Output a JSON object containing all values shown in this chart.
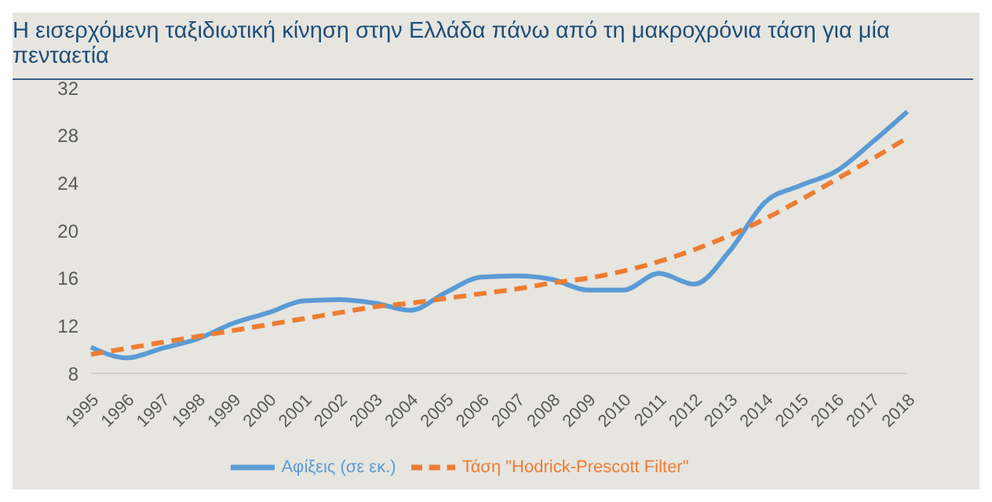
{
  "chart_data": {
    "type": "line",
    "title": "Η εισερχόμενη ταξιδιωτική κίνηση στην Ελλάδα πάνω από τη μακροχρόνια τάση για μία πενταετία",
    "categories": [
      "1995",
      "1996",
      "1997",
      "1998",
      "1999",
      "2000",
      "2001",
      "2002",
      "2003",
      "2004",
      "2005",
      "2006",
      "2007",
      "2008",
      "2009",
      "2010",
      "2011",
      "2012",
      "2013",
      "2014",
      "2015",
      "2016",
      "2017",
      "2018"
    ],
    "series": [
      {
        "name": "Αφίξεις (σε εκ.)",
        "color": "#5b9bd5",
        "line_style": "solid",
        "values": [
          10.2,
          9.3,
          10.1,
          10.9,
          12.2,
          13.1,
          14.1,
          14.2,
          13.9,
          13.3,
          14.8,
          16.1,
          16.2,
          15.9,
          15.0,
          15.0,
          16.4,
          15.5,
          18.3,
          22.4,
          23.8,
          25.0,
          27.4,
          30.0
        ]
      },
      {
        "name": "Τάση \"Hodrick-Prescott Filter\"",
        "color": "#ed7d31",
        "line_style": "dashed",
        "values": [
          9.6,
          10.1,
          10.6,
          11.1,
          11.6,
          12.1,
          12.6,
          13.1,
          13.6,
          13.9,
          14.3,
          14.7,
          15.1,
          15.6,
          16.0,
          16.6,
          17.4,
          18.4,
          19.6,
          21.0,
          22.6,
          24.3,
          26.0,
          27.8
        ]
      }
    ],
    "ylim": [
      8,
      32
    ],
    "yticks": [
      8,
      12,
      16,
      20,
      24,
      28,
      32
    ],
    "grid": false,
    "legend": "bottom",
    "marker": "none"
  }
}
